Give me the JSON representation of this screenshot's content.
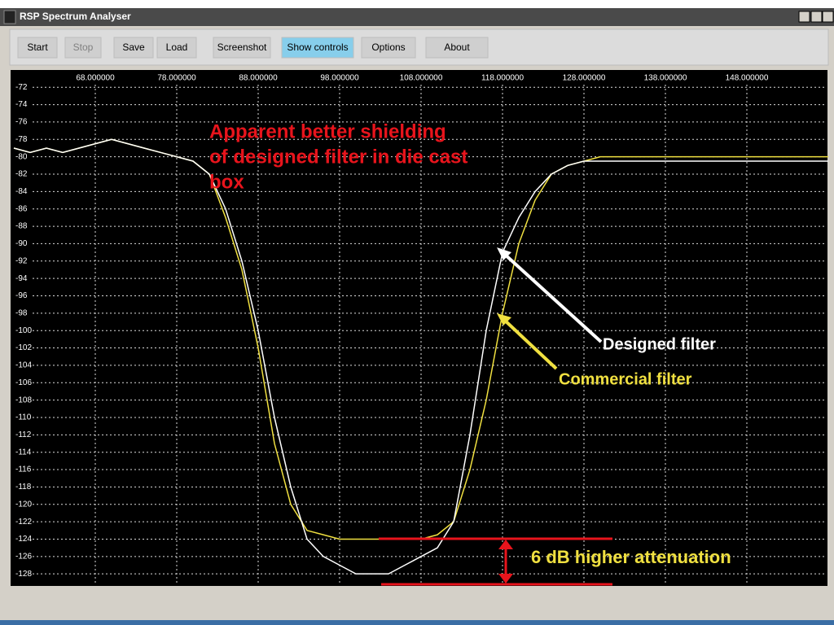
{
  "window": {
    "title": "RSP Spectrum Analyser"
  },
  "toolbar": {
    "buttons": [
      "Start",
      "Stop",
      "Save",
      "Load",
      "Screenshot",
      "Show controls",
      "Options",
      "About"
    ]
  },
  "chart_data": {
    "type": "line",
    "x": [
      58,
      60,
      62,
      64,
      66,
      68,
      70,
      72,
      74,
      76,
      78,
      80,
      82,
      84,
      86,
      88,
      90,
      92,
      94,
      96,
      98,
      100,
      102,
      104,
      106,
      108,
      110,
      112,
      114,
      116,
      118,
      120,
      122,
      124,
      126,
      128,
      130,
      132,
      134,
      136,
      138,
      140,
      142,
      144,
      146,
      148,
      150,
      152,
      154,
      156,
      158
    ],
    "series": [
      {
        "color": "#ffffff",
        "values": [
          -79,
          -79.5,
          -79,
          -79.5,
          -79,
          -78.5,
          -78,
          -78.5,
          -79,
          -79.5,
          -80,
          -80.5,
          -82,
          -86,
          -92,
          -100,
          -110,
          -118,
          -124,
          -126,
          -127,
          -128,
          -128,
          -128,
          -127,
          -126,
          -125,
          -122,
          -112,
          -100,
          -91,
          -87,
          -84,
          -82,
          -81,
          -80.5,
          -80.5,
          -80.5,
          -80.5,
          -80.5,
          -80.5,
          -80.5,
          -80.5,
          -80.5,
          -80.5,
          -80.5,
          -80.5,
          -80.5,
          -80.5,
          -80.5,
          -80.5
        ]
      },
      {
        "color": "#f0e040",
        "values": [
          -79,
          -79.5,
          -79,
          -79.5,
          -79,
          -78.5,
          -78,
          -78.5,
          -79,
          -79.5,
          -80,
          -80.5,
          -82,
          -87,
          -93,
          -102,
          -113,
          -120,
          -123,
          -123.5,
          -124,
          -124,
          -124,
          -124,
          -124,
          -124,
          -123.5,
          -122,
          -116,
          -108,
          -98,
          -90,
          -85,
          -82,
          -81,
          -80.5,
          -80,
          -80,
          -80,
          -80,
          -80,
          -80,
          -80,
          -80,
          -80,
          -80,
          -80,
          -80,
          -80,
          -80,
          -80
        ]
      }
    ],
    "xlim": [
      57.8,
      157.8
    ],
    "xticks": [
      {
        "value": 68,
        "label": "68.000000"
      },
      {
        "value": 78,
        "label": "78.000000"
      },
      {
        "value": 88,
        "label": "88.000000"
      },
      {
        "value": 98,
        "label": "98.000000"
      },
      {
        "value": 108,
        "label": "108.000000"
      },
      {
        "value": 118,
        "label": "118.000000"
      },
      {
        "value": 128,
        "label": "128.000000"
      },
      {
        "value": 138,
        "label": "138.000000"
      },
      {
        "value": 148,
        "label": "148.000000"
      }
    ],
    "ylim": [
      -129.2,
      -70.2
    ],
    "yticks": [
      -72,
      -74,
      -76,
      -78,
      -80,
      -82,
      -84,
      -86,
      -88,
      -90,
      -92,
      -94,
      -96,
      -98,
      -100,
      -102,
      -104,
      -106,
      -108,
      -110,
      -112,
      -114,
      -116,
      -118,
      -120,
      -122,
      -124,
      -126,
      -128
    ],
    "grid": true,
    "annotations": {
      "shielding": [
        "Apparent better shielding",
        "of designed filter in die cast",
        " box"
      ],
      "designed": "Designed filter",
      "commercial": "Commercial filter",
      "attenuation": "6 dB higher attenuation"
    }
  }
}
